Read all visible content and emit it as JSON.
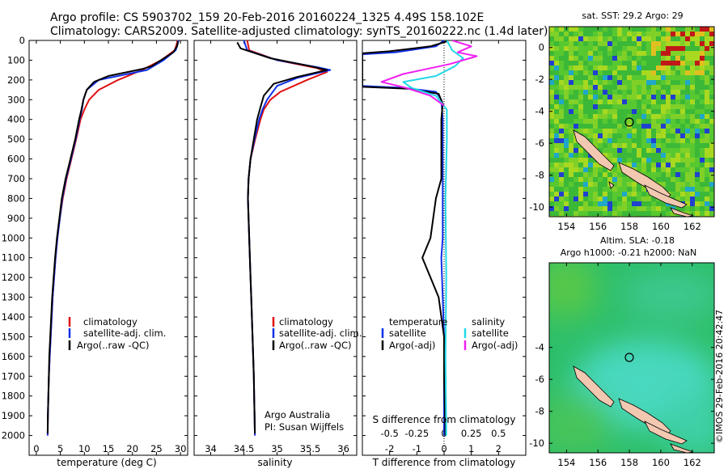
{
  "header": {
    "line1": "Argo profile: CS 5903702_159 20-Feb-2016 20160224_1325 4.49S 158.102E",
    "line2": "Climatology: CARS2009. Satellite-adjusted climatology: synTS_20160222.nc (1.4d later)"
  },
  "colors": {
    "climatology": "#e01010",
    "satellite": "#1030e8",
    "argo": "#000000",
    "argo_sal_adj": "#f020f0",
    "satellite_sal": "#20d8e8"
  },
  "chart_data": [
    {
      "type": "line",
      "name_key": "temperature",
      "xlabel": "temperature (deg C)",
      "ylabel": "",
      "xlim": [
        -1.5,
        31.5
      ],
      "ylim": [
        2100,
        0
      ],
      "xticks": [
        "0",
        "5",
        "10",
        "15",
        "20",
        "25",
        "30"
      ],
      "yticks": [
        "0",
        "100",
        "200",
        "300",
        "400",
        "500",
        "600",
        "700",
        "800",
        "900",
        "1000",
        "1100",
        "1200",
        "1300",
        "1400",
        "1500",
        "1600",
        "1700",
        "1800",
        "1900",
        "2000"
      ],
      "legend": [
        "climatology",
        "satellite-adj. clim.",
        "Argo(..raw -QC)"
      ],
      "legend_position": "lower-left",
      "series": [
        {
          "name": "climatology",
          "color": "#e01010",
          "points": [
            [
              29.4,
              0
            ],
            [
              29.2,
              20
            ],
            [
              28.8,
              50
            ],
            [
              26,
              100
            ],
            [
              22,
              150
            ],
            [
              17,
              200
            ],
            [
              13,
              250
            ],
            [
              11,
              300
            ],
            [
              10,
              350
            ],
            [
              9.2,
              400
            ],
            [
              8.3,
              500
            ],
            [
              7.3,
              600
            ],
            [
              6.3,
              700
            ],
            [
              5.5,
              800
            ],
            [
              4.9,
              900
            ],
            [
              4.4,
              1000
            ],
            [
              4.0,
              1100
            ],
            [
              3.7,
              1200
            ],
            [
              3.4,
              1300
            ],
            [
              3.2,
              1400
            ],
            [
              3.0,
              1500
            ],
            [
              2.8,
              1600
            ],
            [
              2.6,
              1700
            ],
            [
              2.5,
              1800
            ],
            [
              2.4,
              1900
            ],
            [
              2.35,
              2000
            ]
          ]
        },
        {
          "name": "satellite-adj. clim.",
          "color": "#1030e8",
          "points": [
            [
              29.6,
              0
            ],
            [
              29.4,
              20
            ],
            [
              29,
              50
            ],
            [
              26.5,
              100
            ],
            [
              23,
              150
            ],
            [
              13,
              200
            ],
            [
              10.5,
              250
            ],
            [
              9.8,
              300
            ],
            [
              9.5,
              350
            ],
            [
              9.0,
              400
            ],
            [
              8.2,
              500
            ],
            [
              7.2,
              600
            ],
            [
              6.2,
              700
            ],
            [
              5.4,
              800
            ],
            [
              4.9,
              900
            ],
            [
              4.4,
              1000
            ],
            [
              4.0,
              1100
            ],
            [
              3.7,
              1200
            ],
            [
              3.4,
              1300
            ],
            [
              3.2,
              1400
            ],
            [
              3.0,
              1500
            ],
            [
              2.8,
              1600
            ],
            [
              2.6,
              1700
            ],
            [
              2.5,
              1800
            ],
            [
              2.4,
              1900
            ],
            [
              2.35,
              2000
            ]
          ]
        },
        {
          "name": "Argo(..raw -QC)",
          "color": "#000000",
          "points": [
            [
              29.5,
              5
            ],
            [
              29.3,
              30
            ],
            [
              28.5,
              60
            ],
            [
              24,
              130
            ],
            [
              22,
              145
            ],
            [
              15,
              180
            ],
            [
              12,
              210
            ],
            [
              10.5,
              250
            ],
            [
              9.8,
              300
            ],
            [
              9.4,
              350
            ],
            [
              8.9,
              400
            ],
            [
              8.1,
              500
            ],
            [
              7.1,
              600
            ],
            [
              6.1,
              700
            ],
            [
              5.3,
              800
            ],
            [
              4.8,
              900
            ],
            [
              4.3,
              1000
            ],
            [
              3.9,
              1100
            ],
            [
              3.6,
              1200
            ],
            [
              3.3,
              1300
            ],
            [
              3.1,
              1400
            ],
            [
              2.9,
              1500
            ],
            [
              2.7,
              1600
            ],
            [
              2.6,
              1700
            ],
            [
              2.5,
              1800
            ],
            [
              2.4,
              1900
            ],
            [
              2.35,
              1990
            ]
          ]
        }
      ]
    },
    {
      "type": "line",
      "name_key": "salinity",
      "xlabel": "salinity",
      "ylabel": "",
      "xlim": [
        33.75,
        36.2
      ],
      "ylim": [
        2100,
        0
      ],
      "xticks": [
        "34",
        "34.5",
        "35",
        "35.5",
        "36"
      ],
      "legend": [
        "climatology",
        "satellite-adj. clim.",
        "Argo(..raw -QC)"
      ],
      "legend_position": "lower-right",
      "annotation": [
        "Argo Australia",
        "PI: Susan Wijffels"
      ],
      "series": [
        {
          "name": "climatology",
          "color": "#e01010",
          "points": [
            [
              34.55,
              0
            ],
            [
              34.58,
              50
            ],
            [
              35,
              100
            ],
            [
              35.6,
              140
            ],
            [
              35.75,
              160
            ],
            [
              35.45,
              200
            ],
            [
              35.05,
              260
            ],
            [
              34.9,
              300
            ],
            [
              34.8,
              350
            ],
            [
              34.75,
              400
            ],
            [
              34.67,
              500
            ],
            [
              34.6,
              600
            ],
            [
              34.57,
              700
            ],
            [
              34.56,
              800
            ],
            [
              34.57,
              900
            ],
            [
              34.58,
              1000
            ],
            [
              34.59,
              1100
            ],
            [
              34.6,
              1200
            ],
            [
              34.61,
              1300
            ],
            [
              34.62,
              1400
            ],
            [
              34.63,
              1500
            ],
            [
              34.64,
              1600
            ],
            [
              34.65,
              1700
            ],
            [
              34.655,
              1800
            ],
            [
              34.66,
              1900
            ],
            [
              34.665,
              2000
            ]
          ]
        },
        {
          "name": "satellite-adj. clim.",
          "color": "#1030e8",
          "points": [
            [
              34.5,
              0
            ],
            [
              34.55,
              50
            ],
            [
              35,
              100
            ],
            [
              35.6,
              135
            ],
            [
              35.8,
              150
            ],
            [
              35.3,
              190
            ],
            [
              35.0,
              230
            ],
            [
              34.85,
              300
            ],
            [
              34.78,
              350
            ],
            [
              34.73,
              400
            ],
            [
              34.66,
              500
            ],
            [
              34.6,
              600
            ],
            [
              34.57,
              700
            ],
            [
              34.56,
              800
            ],
            [
              34.57,
              900
            ],
            [
              34.58,
              1000
            ],
            [
              34.59,
              1100
            ],
            [
              34.6,
              1200
            ],
            [
              34.61,
              1300
            ],
            [
              34.62,
              1400
            ],
            [
              34.63,
              1500
            ],
            [
              34.64,
              1600
            ],
            [
              34.65,
              1700
            ],
            [
              34.655,
              1800
            ],
            [
              34.66,
              1900
            ],
            [
              34.665,
              2000
            ]
          ]
        },
        {
          "name": "Argo(..raw -QC)",
          "color": "#000000",
          "points": [
            [
              34.4,
              10
            ],
            [
              34.45,
              40
            ],
            [
              34.9,
              90
            ],
            [
              35.5,
              130
            ],
            [
              35.75,
              150
            ],
            [
              35.3,
              185
            ],
            [
              34.95,
              220
            ],
            [
              34.8,
              280
            ],
            [
              34.74,
              350
            ],
            [
              34.7,
              400
            ],
            [
              34.65,
              500
            ],
            [
              34.6,
              600
            ],
            [
              34.57,
              700
            ],
            [
              34.56,
              800
            ],
            [
              34.57,
              900
            ],
            [
              34.58,
              1000
            ],
            [
              34.59,
              1100
            ],
            [
              34.6,
              1200
            ],
            [
              34.61,
              1300
            ],
            [
              34.62,
              1400
            ],
            [
              34.63,
              1500
            ],
            [
              34.64,
              1600
            ],
            [
              34.65,
              1700
            ],
            [
              34.655,
              1800
            ],
            [
              34.66,
              1900
            ],
            [
              34.665,
              1990
            ]
          ]
        }
      ]
    },
    {
      "type": "line",
      "name_key": "difference",
      "xlabel": "T difference from climatology",
      "xlabel_top": "S difference from climatology",
      "ylabel": "",
      "xlim": [
        -3,
        3
      ],
      "ylim": [
        2100,
        0
      ],
      "xticks": [
        "-2",
        "-1",
        "0",
        "1",
        "2"
      ],
      "xticks_top": [
        "-0.5",
        "-0.25",
        "0",
        "0.25",
        "0.5"
      ],
      "legend_temperature": {
        "title": "temperature",
        "items": [
          "satellite",
          "Argo(-adj)"
        ]
      },
      "legend_salinity": {
        "title": "salinity",
        "items": [
          "satellite",
          "Argo(-adj)"
        ]
      },
      "series": [
        {
          "name": "temperature satellite",
          "color": "#1030e8",
          "points": [
            [
              0,
              0
            ],
            [
              -0.3,
              30
            ],
            [
              -1.8,
              60
            ],
            [
              -3,
              70
            ],
            [
              -3,
              230
            ],
            [
              -1.5,
              240
            ],
            [
              -0.3,
              260
            ],
            [
              -0.1,
              300
            ],
            [
              -0.05,
              400
            ],
            [
              -0.05,
              1000
            ],
            [
              -0.1,
              1100
            ],
            [
              0,
              1500
            ],
            [
              0,
              1800
            ],
            [
              0,
              2000
            ]
          ]
        },
        {
          "name": "temperature Argo(-adj)",
          "color": "#000000",
          "points": [
            [
              0.1,
              5
            ],
            [
              -0.5,
              30
            ],
            [
              -2,
              55
            ],
            [
              -3,
              65
            ],
            [
              -3,
              235
            ],
            [
              -1.3,
              245
            ],
            [
              -0.2,
              270
            ],
            [
              -0.05,
              320
            ],
            [
              -0.1,
              400
            ],
            [
              -0.1,
              700
            ],
            [
              -0.3,
              800
            ],
            [
              -0.5,
              1000
            ],
            [
              -0.8,
              1100
            ],
            [
              -0.5,
              1200
            ],
            [
              -0.2,
              1300
            ],
            [
              -0.1,
              1400
            ],
            [
              0,
              1500
            ],
            [
              0,
              1700
            ],
            [
              0.05,
              2000
            ]
          ]
        },
        {
          "name": "salinity satellite",
          "color": "#20d8e8",
          "points": [
            [
              0.1,
              0
            ],
            [
              0.3,
              50
            ],
            [
              0.7,
              90
            ],
            [
              0.4,
              130
            ],
            [
              -0.3,
              180
            ],
            [
              -1.5,
              210
            ],
            [
              -1.2,
              240
            ],
            [
              -0.3,
              280
            ],
            [
              0.1,
              350
            ],
            [
              0.1,
              500
            ],
            [
              0.05,
              800
            ],
            [
              0.08,
              1200
            ],
            [
              0.05,
              1600
            ],
            [
              0.08,
              2000
            ]
          ]
        },
        {
          "name": "salinity Argo(-adj)",
          "color": "#f020f0",
          "points": [
            [
              0.3,
              0
            ],
            [
              1.0,
              30
            ],
            [
              0.5,
              60
            ],
            [
              1.2,
              80
            ],
            [
              0.2,
              120
            ],
            [
              -1.5,
              170
            ],
            [
              -2.3,
              210
            ],
            [
              -1.4,
              240
            ],
            [
              -0.5,
              280
            ],
            [
              0,
              330
            ]
          ]
        }
      ]
    }
  ],
  "maps": {
    "sst": {
      "title": "sat. SST: 29.2 Argo: 29",
      "xticks": [
        "154",
        "156",
        "158",
        "160",
        "162"
      ],
      "yticks": [
        "0",
        "-2",
        "-4",
        "-6",
        "-8",
        "-10"
      ]
    },
    "sla": {
      "title1": "Altim. SLA: -0.18",
      "title2": "Argo h1000: -0.21 h2000: NaN",
      "xticks": [
        "154",
        "156",
        "158",
        "160",
        "162"
      ],
      "yticks": [
        "-4",
        "-6",
        "-8",
        "-10"
      ]
    }
  },
  "stamp": "©IMOS 29-Feb-2016 20:42:47"
}
